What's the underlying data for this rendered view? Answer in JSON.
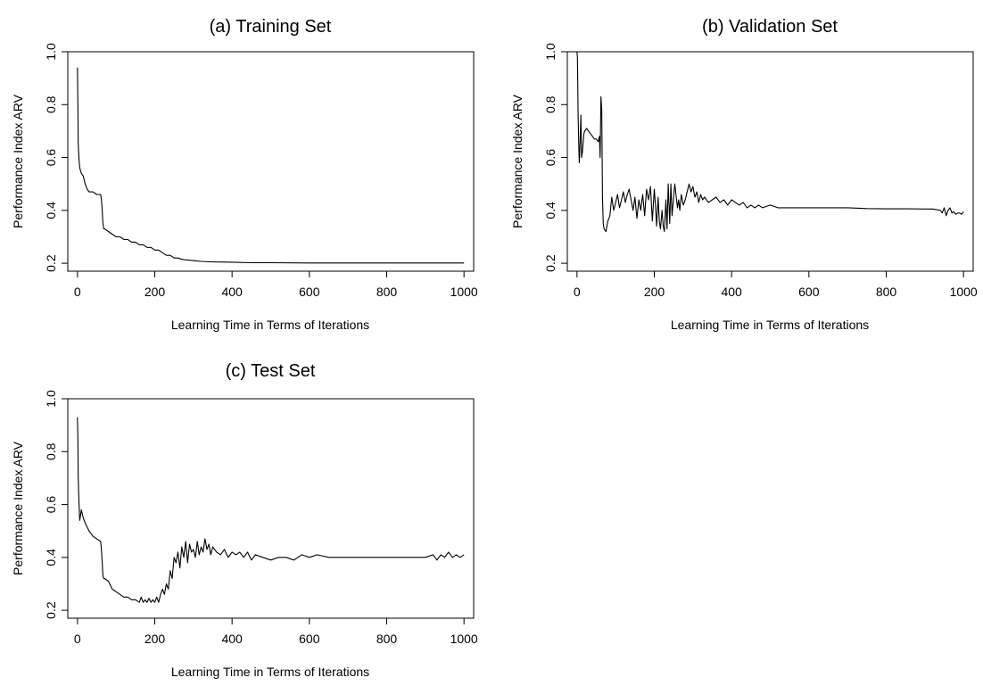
{
  "chart_data": [
    {
      "type": "line",
      "title": "(a) Training Set",
      "xlabel": "Learning Time in Terms of Iterations",
      "ylabel": "Performance Index ARV",
      "xlim": [
        -25,
        1025
      ],
      "ylim": [
        0.17,
        1.0
      ],
      "xticks": [
        "0",
        "200",
        "400",
        "600",
        "800",
        "1000"
      ],
      "yticks": [
        "0.2",
        "0.4",
        "0.6",
        "0.8",
        "1.0"
      ],
      "x": [
        0,
        1,
        2,
        4,
        6,
        8,
        10,
        15,
        20,
        25,
        30,
        40,
        50,
        60,
        62,
        64,
        66,
        68,
        70,
        80,
        90,
        100,
        110,
        120,
        130,
        140,
        150,
        160,
        170,
        180,
        190,
        200,
        210,
        220,
        230,
        240,
        250,
        260,
        270,
        280,
        300,
        320,
        350,
        400,
        450,
        500,
        600,
        700,
        800,
        900,
        1000
      ],
      "y": [
        0.94,
        0.8,
        0.65,
        0.59,
        0.56,
        0.55,
        0.54,
        0.53,
        0.5,
        0.48,
        0.47,
        0.47,
        0.46,
        0.46,
        0.44,
        0.4,
        0.35,
        0.33,
        0.33,
        0.32,
        0.31,
        0.3,
        0.3,
        0.29,
        0.29,
        0.28,
        0.28,
        0.27,
        0.27,
        0.26,
        0.26,
        0.25,
        0.25,
        0.24,
        0.23,
        0.23,
        0.22,
        0.22,
        0.215,
        0.213,
        0.21,
        0.207,
        0.205,
        0.204,
        0.202,
        0.202,
        0.201,
        0.201,
        0.201,
        0.201,
        0.201
      ]
    },
    {
      "type": "line",
      "title": "(b) Validation Set",
      "xlabel": "Learning Time in Terms of Iterations",
      "ylabel": "Performance Index ARV",
      "xlim": [
        -25,
        1025
      ],
      "ylim": [
        0.17,
        1.0
      ],
      "xticks": [
        "0",
        "200",
        "400",
        "600",
        "800",
        "1000"
      ],
      "yticks": [
        "0.2",
        "0.4",
        "0.6",
        "0.8",
        "1.0"
      ],
      "x": [
        0,
        1,
        2,
        3,
        4,
        5,
        6,
        8,
        10,
        12,
        14,
        16,
        18,
        20,
        25,
        30,
        35,
        40,
        45,
        50,
        55,
        58,
        60,
        62,
        64,
        66,
        68,
        70,
        75,
        80,
        85,
        90,
        95,
        100,
        105,
        110,
        115,
        120,
        125,
        130,
        135,
        140,
        145,
        150,
        155,
        160,
        165,
        170,
        175,
        180,
        185,
        190,
        195,
        200,
        203,
        206,
        210,
        213,
        216,
        220,
        223,
        226,
        230,
        233,
        236,
        240,
        243,
        246,
        250,
        253,
        256,
        260,
        263,
        266,
        270,
        275,
        280,
        285,
        290,
        295,
        300,
        305,
        310,
        315,
        320,
        325,
        330,
        340,
        350,
        360,
        370,
        380,
        390,
        400,
        410,
        420,
        430,
        440,
        450,
        460,
        470,
        480,
        500,
        520,
        540,
        560,
        580,
        600,
        620,
        650,
        700,
        750,
        800,
        850,
        900,
        920,
        930,
        940,
        945,
        950,
        955,
        960,
        965,
        970,
        975,
        980,
        985,
        990,
        995,
        1000
      ],
      "y": [
        1.05,
        0.98,
        0.88,
        0.76,
        0.68,
        0.62,
        0.58,
        0.66,
        0.76,
        0.6,
        0.62,
        0.66,
        0.69,
        0.7,
        0.71,
        0.7,
        0.69,
        0.68,
        0.67,
        0.67,
        0.66,
        0.68,
        0.6,
        0.83,
        0.78,
        0.45,
        0.35,
        0.33,
        0.32,
        0.36,
        0.38,
        0.45,
        0.4,
        0.43,
        0.46,
        0.41,
        0.44,
        0.47,
        0.43,
        0.46,
        0.48,
        0.44,
        0.4,
        0.45,
        0.37,
        0.44,
        0.4,
        0.46,
        0.38,
        0.48,
        0.44,
        0.49,
        0.36,
        0.48,
        0.42,
        0.34,
        0.45,
        0.36,
        0.33,
        0.4,
        0.34,
        0.32,
        0.44,
        0.33,
        0.5,
        0.35,
        0.5,
        0.38,
        0.45,
        0.5,
        0.46,
        0.41,
        0.44,
        0.4,
        0.46,
        0.42,
        0.44,
        0.47,
        0.5,
        0.47,
        0.49,
        0.45,
        0.47,
        0.43,
        0.46,
        0.44,
        0.45,
        0.43,
        0.44,
        0.45,
        0.43,
        0.44,
        0.42,
        0.44,
        0.43,
        0.42,
        0.43,
        0.41,
        0.42,
        0.41,
        0.42,
        0.41,
        0.42,
        0.41,
        0.41,
        0.41,
        0.41,
        0.41,
        0.41,
        0.41,
        0.41,
        0.407,
        0.406,
        0.406,
        0.405,
        0.405,
        0.403,
        0.4,
        0.39,
        0.41,
        0.38,
        0.4,
        0.41,
        0.39,
        0.395,
        0.385,
        0.39,
        0.39,
        0.385,
        0.395
      ]
    },
    {
      "type": "line",
      "title": "(c) Test Set",
      "xlabel": "Learning Time in Terms of Iterations",
      "ylabel": "Performance Index ARV",
      "xlim": [
        -25,
        1025
      ],
      "ylim": [
        0.17,
        1.0
      ],
      "xticks": [
        "0",
        "200",
        "400",
        "600",
        "800",
        "1000"
      ],
      "yticks": [
        "0.2",
        "0.4",
        "0.6",
        "0.8",
        "1.0"
      ],
      "x": [
        0,
        1,
        2,
        4,
        6,
        8,
        10,
        15,
        20,
        30,
        40,
        50,
        60,
        62,
        64,
        66,
        68,
        70,
        80,
        90,
        100,
        110,
        120,
        130,
        140,
        150,
        160,
        165,
        170,
        175,
        180,
        185,
        190,
        195,
        200,
        205,
        210,
        215,
        220,
        225,
        230,
        235,
        240,
        245,
        250,
        255,
        260,
        265,
        270,
        275,
        280,
        285,
        290,
        295,
        300,
        305,
        310,
        315,
        320,
        325,
        330,
        335,
        340,
        345,
        350,
        360,
        370,
        380,
        390,
        400,
        410,
        420,
        430,
        440,
        450,
        460,
        480,
        500,
        520,
        540,
        560,
        580,
        600,
        620,
        650,
        700,
        750,
        800,
        850,
        900,
        920,
        930,
        940,
        950,
        960,
        970,
        980,
        990,
        1000
      ],
      "y": [
        0.93,
        0.85,
        0.7,
        0.6,
        0.54,
        0.56,
        0.58,
        0.55,
        0.53,
        0.5,
        0.48,
        0.47,
        0.46,
        0.43,
        0.38,
        0.33,
        0.32,
        0.32,
        0.31,
        0.28,
        0.27,
        0.26,
        0.25,
        0.25,
        0.24,
        0.24,
        0.23,
        0.25,
        0.23,
        0.24,
        0.23,
        0.245,
        0.23,
        0.24,
        0.23,
        0.25,
        0.23,
        0.26,
        0.28,
        0.26,
        0.3,
        0.28,
        0.35,
        0.32,
        0.4,
        0.38,
        0.42,
        0.36,
        0.44,
        0.4,
        0.46,
        0.38,
        0.45,
        0.42,
        0.43,
        0.4,
        0.46,
        0.41,
        0.44,
        0.42,
        0.47,
        0.43,
        0.45,
        0.41,
        0.44,
        0.42,
        0.41,
        0.43,
        0.4,
        0.42,
        0.41,
        0.42,
        0.4,
        0.42,
        0.39,
        0.41,
        0.4,
        0.39,
        0.4,
        0.4,
        0.39,
        0.41,
        0.4,
        0.41,
        0.4,
        0.4,
        0.4,
        0.4,
        0.4,
        0.4,
        0.41,
        0.39,
        0.41,
        0.4,
        0.42,
        0.4,
        0.41,
        0.4,
        0.41
      ]
    }
  ]
}
